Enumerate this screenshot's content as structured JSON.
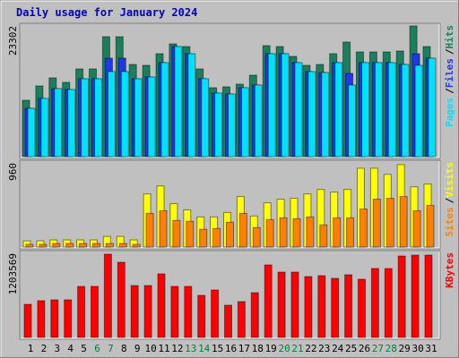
{
  "title": "Daily usage for January 2024",
  "legend_separator": "/",
  "chart_data": [
    {
      "type": "bar",
      "ylim": [
        0,
        23302
      ],
      "yticks": [
        23302
      ],
      "series": [
        {
          "name": "Hits",
          "color": "#1a7f5a",
          "values": [
            10055,
            12609,
            14045,
            13247,
            15641,
            15641,
            21387,
            21387,
            16439,
            16279,
            18354,
            20110,
            19631,
            15641,
            12289,
            12449,
            12928,
            14524,
            19790,
            19631,
            17875,
            16279,
            16439,
            18354,
            20429,
            18673,
            18673,
            18673,
            18833,
            23302,
            19631
          ]
        },
        {
          "name": "Files",
          "color": "#2038e8",
          "values": [
            8618,
            10374,
            12130,
            11970,
            13885,
            13885,
            17556,
            17556,
            13885,
            14204,
            16758,
            19631,
            18354,
            13885,
            11332,
            11172,
            12289,
            12768,
            18354,
            18354,
            16758,
            15162,
            15002,
            16758,
            14843,
            16758,
            16758,
            16758,
            16439,
            18354,
            17556
          ]
        },
        {
          "name": "Pages",
          "color": "#00e0ff",
          "values": [
            8618,
            10374,
            12130,
            11970,
            13885,
            13885,
            15162,
            15162,
            13885,
            14204,
            16758,
            19631,
            18354,
            13885,
            11332,
            11172,
            12289,
            12768,
            18354,
            18354,
            16758,
            15162,
            15002,
            16758,
            12768,
            16758,
            16758,
            16758,
            16439,
            16279,
            17556
          ]
        }
      ]
    },
    {
      "type": "bar",
      "ylim": [
        0,
        960
      ],
      "yticks": [
        960
      ],
      "series": [
        {
          "name": "Visits",
          "color": "#ffff00",
          "values": [
            71,
            71,
            81,
            81,
            81,
            81,
            121,
            121,
            81,
            606,
            697,
            495,
            424,
            343,
            343,
            394,
            576,
            354,
            505,
            546,
            556,
            606,
            657,
            627,
            657,
            899,
            899,
            829,
            940,
            687,
            718
          ]
        },
        {
          "name": "Sites",
          "color": "#ff8000",
          "values": [
            30,
            30,
            40,
            40,
            40,
            40,
            40,
            40,
            30,
            384,
            414,
            303,
            293,
            202,
            212,
            283,
            384,
            222,
            313,
            333,
            323,
            343,
            253,
            333,
            333,
            434,
            546,
            556,
            576,
            414,
            475
          ]
        }
      ]
    },
    {
      "type": "bar",
      "ylim": [
        0,
        1203569
      ],
      "yticks": [
        1203569
      ],
      "categories": [
        "1",
        "2",
        "3",
        "4",
        "5",
        "6",
        "7",
        "8",
        "9",
        "10",
        "11",
        "12",
        "13",
        "14",
        "15",
        "16",
        "17",
        "18",
        "19",
        "20",
        "21",
        "22",
        "23",
        "24",
        "25",
        "26",
        "27",
        "28",
        "29",
        "30",
        "31"
      ],
      "label_colors": [
        "#000000",
        "#000000",
        "#000000",
        "#000000",
        "#000000",
        "#008040",
        "#008040",
        "#000000",
        "#000000",
        "#000000",
        "#000000",
        "#000000",
        "#008040",
        "#008040",
        "#000000",
        "#000000",
        "#000000",
        "#000000",
        "#000000",
        "#008040",
        "#008040",
        "#000000",
        "#000000",
        "#000000",
        "#000000",
        "#000000",
        "#008040",
        "#008040",
        "#000000",
        "#000000",
        "#000000"
      ],
      "series": [
        {
          "name": "KBytes",
          "color": "#ff0000",
          "values": [
            473748,
            524964,
            537768,
            537768,
            729828,
            729828,
            1190772,
            1075536,
            742632,
            742632,
            909084,
            729828,
            729828,
            601788,
            678612,
            460944,
            512160,
            640200,
            1037124,
            934692,
            934692,
            870672,
            883476,
            845064,
            896280,
            832260,
            985908,
            985908,
            1165164,
            1177968,
            1177968
          ]
        }
      ]
    }
  ]
}
